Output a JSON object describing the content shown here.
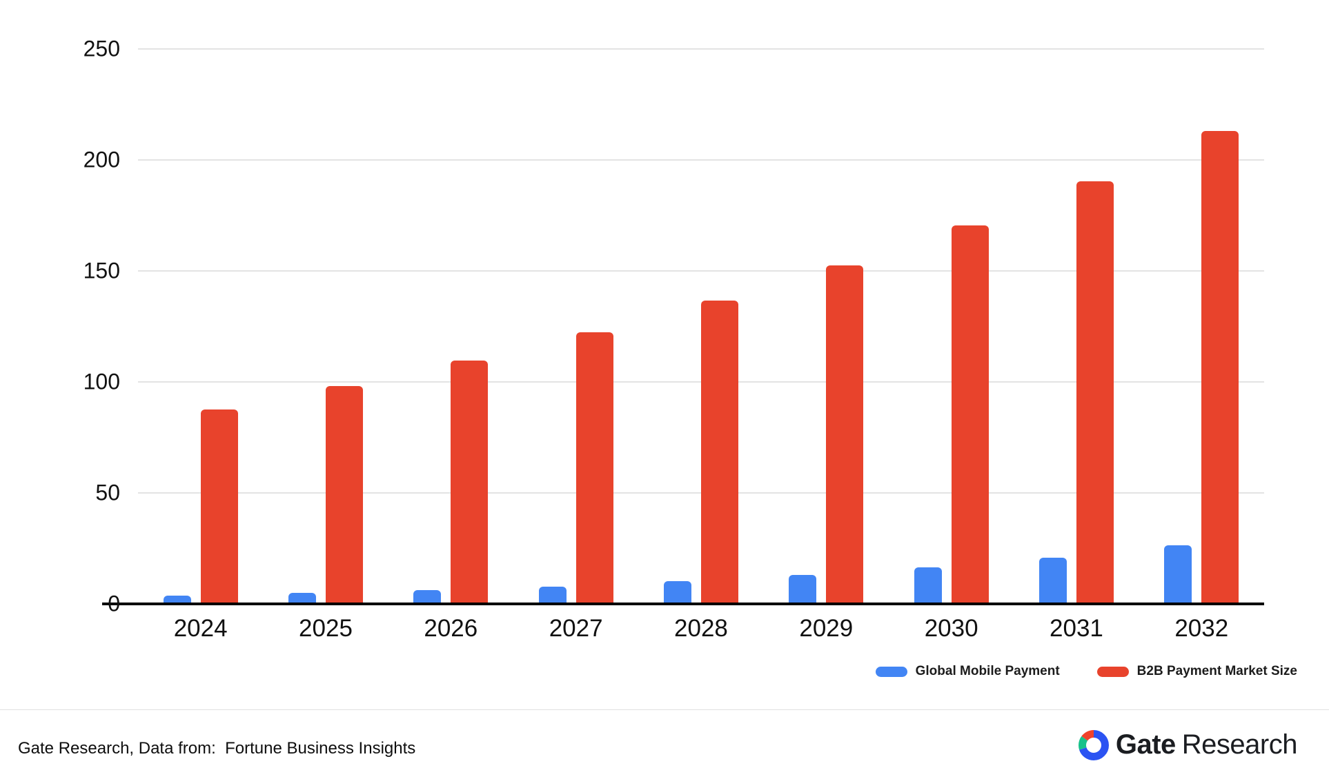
{
  "chart_data": {
    "type": "bar",
    "title": "",
    "xlabel": "",
    "ylabel": "",
    "categories": [
      "2024",
      "2025",
      "2026",
      "2027",
      "2028",
      "2029",
      "2030",
      "2031",
      "2032"
    ],
    "series": [
      {
        "name": "Global Mobile Payment",
        "color": "#4285F4",
        "values": [
          3.8,
          4.9,
          6.2,
          7.9,
          10.1,
          12.9,
          16.4,
          20.9,
          26.5
        ]
      },
      {
        "name": "B2B Payment Market Size",
        "color": "#E8432C",
        "values": [
          87.7,
          98.0,
          109.6,
          122.3,
          136.6,
          152.6,
          170.5,
          190.5,
          213.2
        ]
      }
    ],
    "ylim": [
      0,
      250
    ],
    "yticks": [
      0,
      50,
      100,
      150,
      200,
      250
    ],
    "grid": true,
    "legend_position": "bottom-right"
  },
  "footer": {
    "source_text": "Gate Research, Data from:  Fortune Business Insights"
  },
  "brand": {
    "name_bold": "Gate",
    "name_regular": "Research",
    "mark_colors": {
      "blue": "#2B53F2",
      "green": "#17C28A",
      "red": "#F0422B"
    }
  }
}
